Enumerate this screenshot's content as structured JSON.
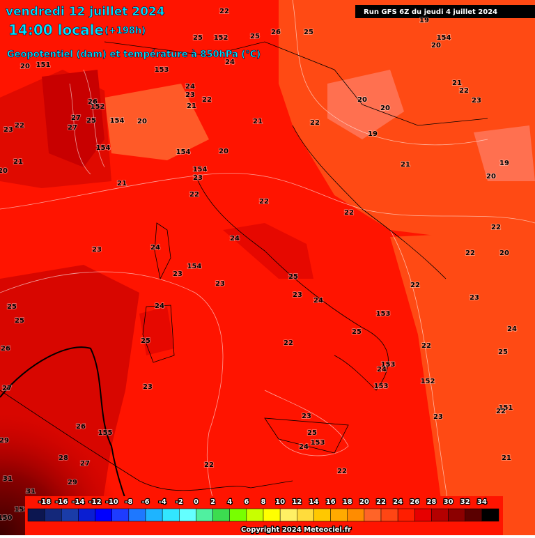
{
  "header": {
    "date": "vendredi 12 juillet 2024",
    "time": "14:00 locale",
    "lead": "(+198h)",
    "field": "Geopotentiel (dam) et température à 850hPa (°C)",
    "run": "Run GFS 6Z du jeudi 4 juillet 2024"
  },
  "labels": [
    "22",
    "19",
    "154",
    "20",
    "25",
    "152",
    "25",
    "26",
    "25",
    "20",
    "151",
    "153",
    "24",
    "21",
    "22",
    "23",
    "24",
    "23",
    "22",
    "21",
    "20",
    "20",
    "26",
    "152",
    "27",
    "25",
    "154",
    "20",
    "21",
    "22",
    "23",
    "22",
    "27",
    "19",
    "154",
    "154",
    "20",
    "21",
    "20",
    "154",
    "23",
    "21",
    "19",
    "20",
    "21",
    "22",
    "22",
    "22",
    "22",
    "24",
    "23",
    "24",
    "22",
    "20",
    "154",
    "23",
    "25",
    "23",
    "22",
    "23",
    "23",
    "24",
    "24",
    "25",
    "25",
    "153",
    "24",
    "25",
    "22",
    "25",
    "26",
    "22",
    "25",
    "153",
    "24",
    "152",
    "153",
    "23",
    "27",
    "151",
    "22",
    "23",
    "23",
    "26",
    "155",
    "25",
    "153",
    "24",
    "29",
    "28",
    "27",
    "22",
    "21",
    "31",
    "29",
    "22",
    "31",
    "156",
    "150"
  ],
  "scale": {
    "labels": [
      -18,
      -16,
      -14,
      -12,
      -10,
      -8,
      -6,
      -4,
      -2,
      0,
      2,
      4,
      6,
      8,
      10,
      12,
      14,
      16,
      18,
      20,
      22,
      24,
      26,
      28,
      30,
      32,
      34
    ],
    "colors": [
      "#0c1650",
      "#14287a",
      "#1a3ca8",
      "#0a1ed2",
      "#0000ff",
      "#1e3cff",
      "#1e78ff",
      "#1eb4ff",
      "#32e6ff",
      "#64ffff",
      "#50f0a0",
      "#3cdc50",
      "#78ff00",
      "#c8ff00",
      "#ffff00",
      "#fff064",
      "#ffdc3c",
      "#ffc800",
      "#ffaa00",
      "#ff8c00",
      "#ff6428",
      "#ff4614",
      "#ff1e00",
      "#e60000",
      "#b40000",
      "#8c0000",
      "#5a0000",
      "#000000"
    ]
  },
  "footer": {
    "copyright": "Copyright 2024 Meteociel.fr"
  }
}
